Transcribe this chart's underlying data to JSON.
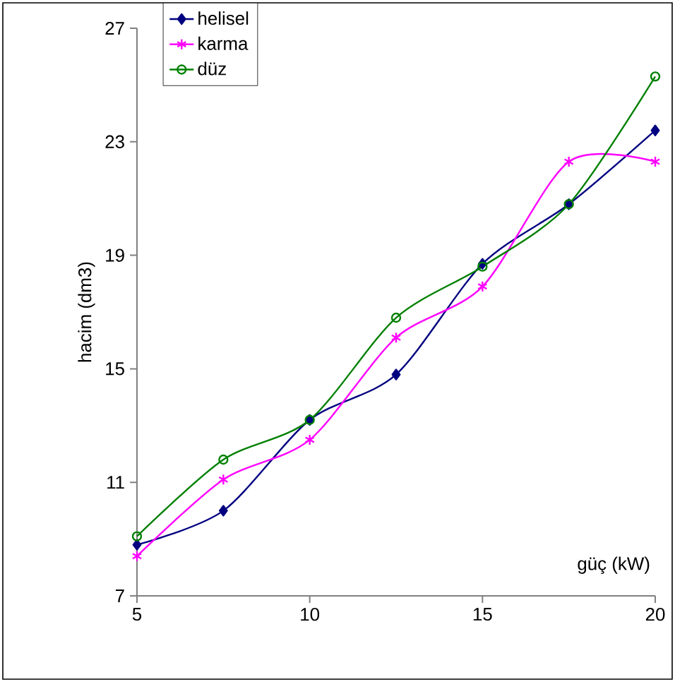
{
  "chart_data": {
    "type": "line",
    "xlabel": "güç (kW)",
    "ylabel": "hacim (dm3)",
    "x": [
      5,
      7.5,
      10,
      12.5,
      15,
      17.5,
      20
    ],
    "series": [
      {
        "name": "helisel",
        "color": "#000080",
        "marker": "diamond",
        "values": [
          8.8,
          10.0,
          13.2,
          14.8,
          18.7,
          20.8,
          23.4
        ]
      },
      {
        "name": "karma",
        "color": "#ff00ff",
        "marker": "cross",
        "values": [
          8.4,
          11.1,
          12.5,
          16.1,
          17.9,
          22.3,
          22.3
        ]
      },
      {
        "name": "düz",
        "color": "#008000",
        "marker": "circle",
        "values": [
          9.1,
          11.8,
          13.2,
          16.8,
          18.6,
          20.8,
          25.3
        ]
      }
    ],
    "xlim": [
      5,
      20
    ],
    "xticks": [
      5,
      10,
      15,
      20
    ],
    "ylim": [
      7,
      27
    ],
    "yticks": [
      7,
      11,
      15,
      19,
      23,
      27
    ],
    "grid": false,
    "legend": "top left",
    "line_style": "solid"
  }
}
